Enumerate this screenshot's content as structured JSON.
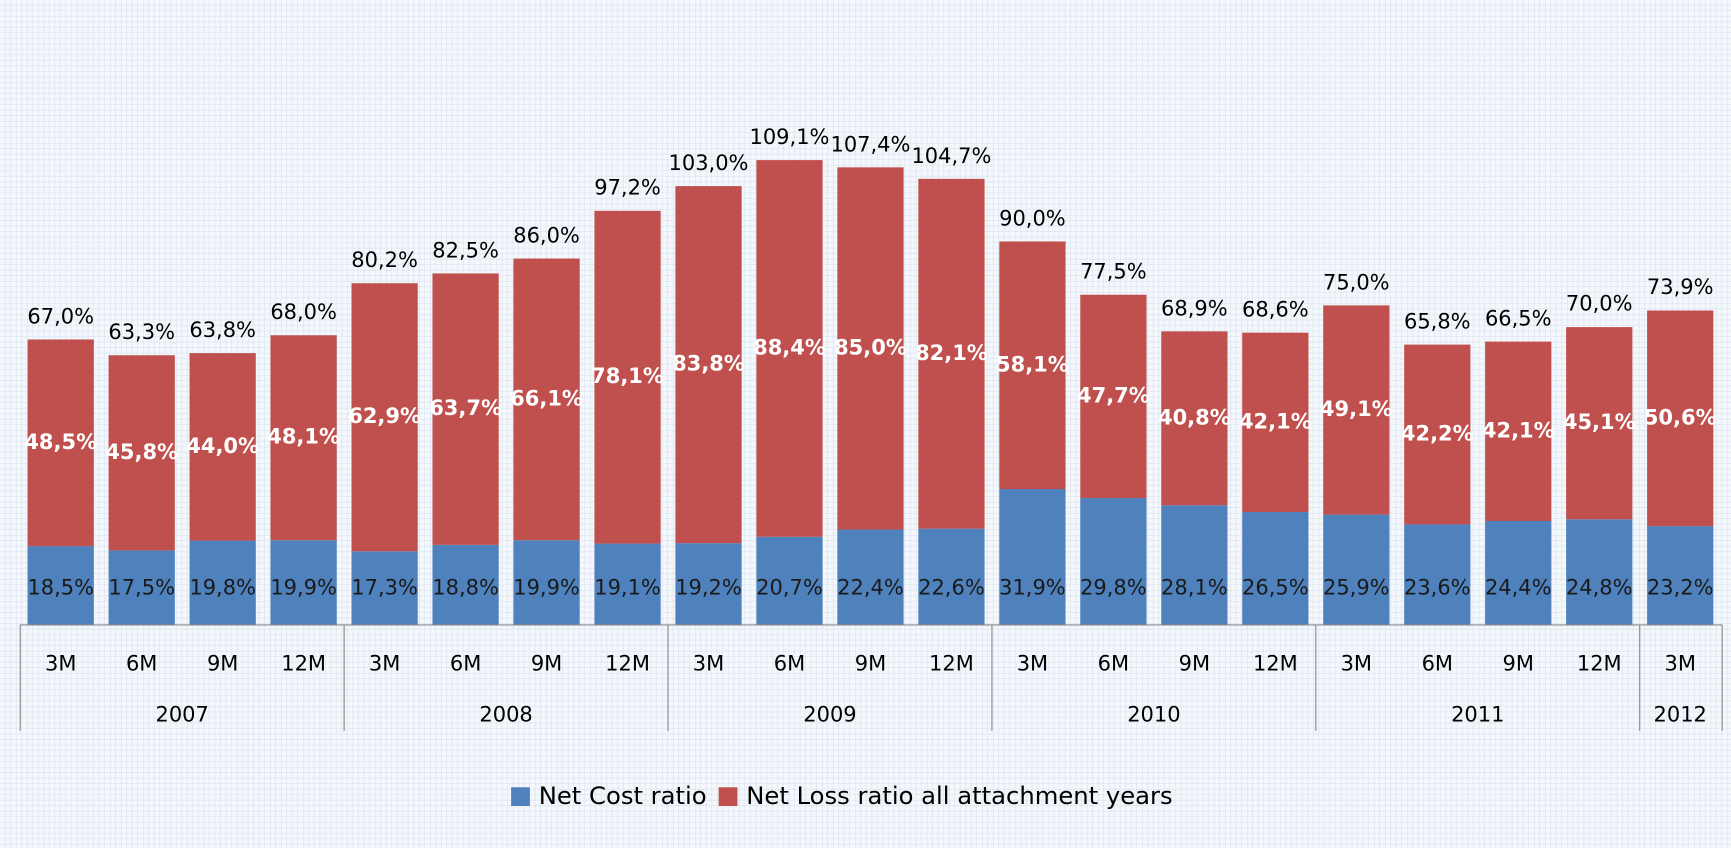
{
  "chart_data": {
    "type": "stacked_bar",
    "groups": [
      {
        "name": "2007",
        "categories": [
          "3M",
          "6M",
          "9M",
          "12M"
        ]
      },
      {
        "name": "2008",
        "categories": [
          "3M",
          "6M",
          "9M",
          "12M"
        ]
      },
      {
        "name": "2009",
        "categories": [
          "3M",
          "6M",
          "9M",
          "12M"
        ]
      },
      {
        "name": "2010",
        "categories": [
          "3M",
          "6M",
          "9M",
          "12M"
        ]
      },
      {
        "name": "2011",
        "categories": [
          "3M",
          "6M",
          "9M",
          "12M"
        ]
      },
      {
        "name": "2012",
        "categories": [
          "3M"
        ]
      }
    ],
    "series": [
      {
        "name": "Net Cost ratio",
        "color": "#4f81bd",
        "values": [
          18.5,
          17.5,
          19.8,
          19.9,
          17.3,
          18.8,
          19.9,
          19.1,
          19.2,
          20.7,
          22.4,
          22.6,
          31.9,
          29.8,
          28.1,
          26.5,
          25.9,
          23.6,
          24.4,
          24.8,
          23.2
        ],
        "value_labels": [
          "18,5%",
          "17,5%",
          "19,8%",
          "19,9%",
          "17,3%",
          "18,8%",
          "19,9%",
          "19,1%",
          "19,2%",
          "20,7%",
          "22,4%",
          "22,6%",
          "31,9%",
          "29,8%",
          "28,1%",
          "26,5%",
          "25,9%",
          "23,6%",
          "24,4%",
          "24,8%",
          "23,2%"
        ]
      },
      {
        "name": "Net Loss ratio all attachment years",
        "color": "#c0504d",
        "values": [
          48.5,
          45.8,
          44.0,
          48.1,
          62.9,
          63.7,
          66.1,
          78.1,
          83.8,
          88.4,
          85.0,
          82.1,
          58.1,
          47.7,
          40.8,
          42.1,
          49.1,
          42.2,
          42.1,
          45.1,
          50.6
        ],
        "value_labels": [
          "48,5%",
          "45,8%",
          "44,0%",
          "48,1%",
          "62,9%",
          "63,7%",
          "66,1%",
          "78,1%",
          "83,8%",
          "88,4%",
          "85,0%",
          "82,1%",
          "58,1%",
          "47,7%",
          "40,8%",
          "42,1%",
          "49,1%",
          "42,2%",
          "42,1%",
          "45,1%",
          "50,6%"
        ]
      }
    ],
    "totals": {
      "values": [
        67.0,
        63.3,
        63.8,
        68.0,
        80.2,
        82.5,
        86.0,
        97.2,
        103.0,
        109.1,
        107.4,
        104.7,
        90.0,
        77.5,
        68.9,
        68.6,
        75.0,
        65.8,
        66.5,
        70.0,
        73.9
      ],
      "value_labels": [
        "67,0%",
        "63,3%",
        "63,8%",
        "68,0%",
        "80,2%",
        "82,5%",
        "86,0%",
        "97,2%",
        "103,0%",
        "109,1%",
        "107,4%",
        "104,7%",
        "90,0%",
        "77,5%",
        "68,9%",
        "68,6%",
        "75,0%",
        "65,8%",
        "66,5%",
        "70,0%",
        "73,9%"
      ]
    },
    "legend": "bottom"
  }
}
